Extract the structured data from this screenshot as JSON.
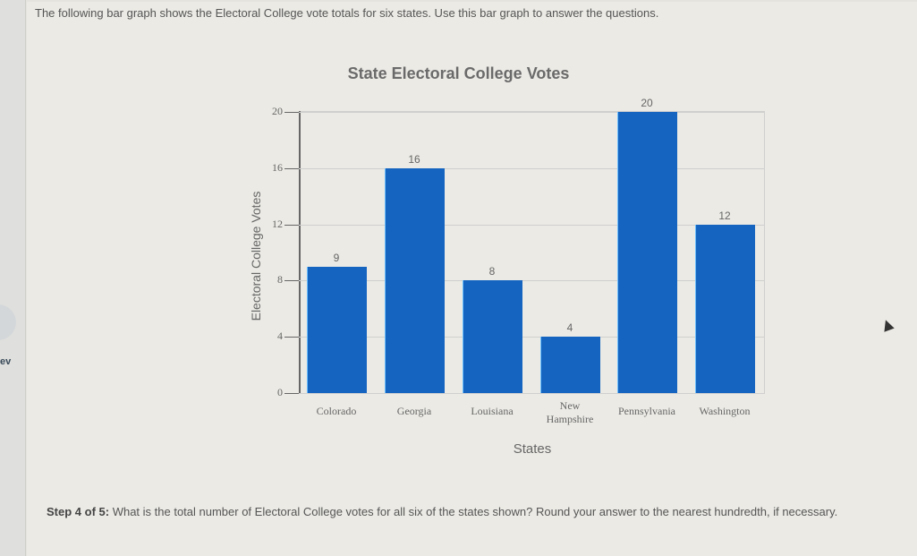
{
  "sidebar": {
    "prev_label": "ev"
  },
  "intro_text": "The following bar graph shows the Electoral College vote totals for six states. Use this bar graph to answer the questions.",
  "question": {
    "step_label": "Step 4 of 5:",
    "text": " What is the total number of Electoral College votes for all six of the states shown? Round your answer to the nearest hundredth, if necessary."
  },
  "chart_data": {
    "type": "bar",
    "title": "State Electoral College Votes",
    "xlabel": "States",
    "ylabel": "Electoral College Votes",
    "categories": [
      "Colorado",
      "Georgia",
      "Louisiana",
      "New Hampshire",
      "Pennsylvania",
      "Washington"
    ],
    "values": [
      9,
      16,
      8,
      4,
      20,
      12
    ],
    "yticks": [
      0,
      4,
      8,
      12,
      16,
      20
    ],
    "ylim": [
      0,
      20
    ],
    "grid": true,
    "bar_color": "#1565c0",
    "data_labels": true
  }
}
